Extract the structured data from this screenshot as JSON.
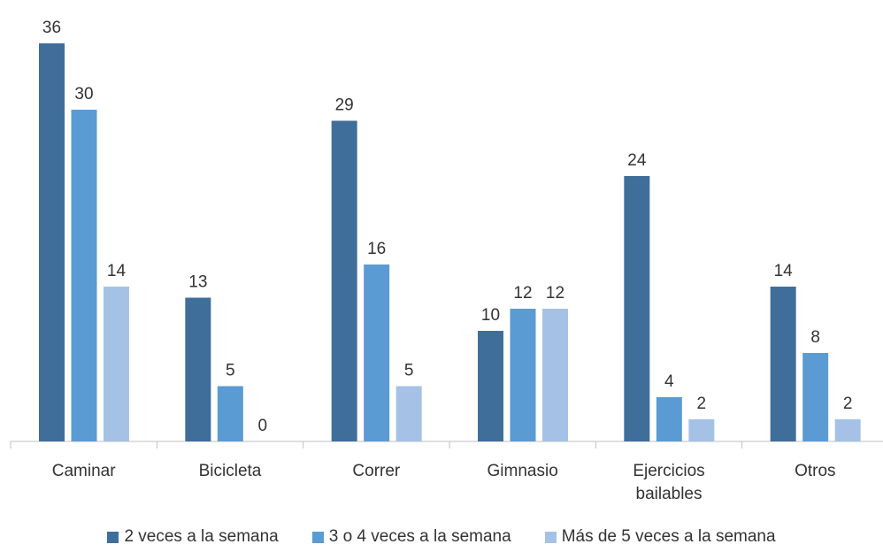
{
  "chart_data": {
    "type": "bar",
    "categories": [
      [
        "Caminar"
      ],
      [
        "Bicicleta"
      ],
      [
        "Correr"
      ],
      [
        "Gimnasio"
      ],
      [
        "Ejercicios",
        "bailables"
      ],
      [
        "Otros"
      ]
    ],
    "series": [
      {
        "name": "2 veces a la semana",
        "values": [
          36,
          13,
          29,
          10,
          24,
          14
        ],
        "color": "#3f6e9b"
      },
      {
        "name": "3 o 4 veces a la semana",
        "values": [
          30,
          5,
          16,
          12,
          4,
          8
        ],
        "color": "#5b9bd3"
      },
      {
        "name": "Más de 5 veces a la semana",
        "values": [
          14,
          0,
          5,
          12,
          2,
          2
        ],
        "color": "#a5c2e6"
      }
    ],
    "ylim": [
      0,
      36
    ],
    "grid": false,
    "legend_position": "bottom"
  }
}
